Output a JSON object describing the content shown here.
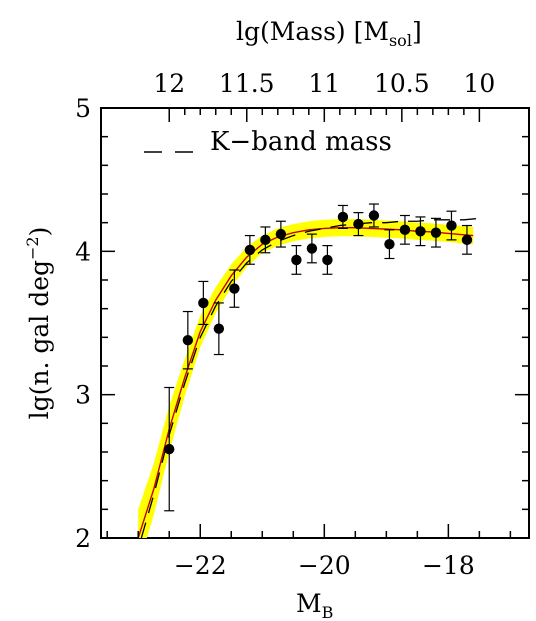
{
  "chart_data": {
    "type": "scatter",
    "xlabel": "M",
    "xlabel_sub": "B",
    "ylabel": "lg(n. gal deg",
    "ylabel_sup": "−2",
    "ylabel_end": ")",
    "top_axis_label": "lg(Mass)  [M",
    "top_axis_label_sub": "sol",
    "top_axis_label_end": "]",
    "xlim": [
      -23.6,
      -16.7
    ],
    "ylim": [
      2,
      5
    ],
    "x_ticks": [
      -22,
      -20,
      -18
    ],
    "x_tick_labels": [
      "−22",
      "−20",
      "−18"
    ],
    "y_ticks": [
      2,
      3,
      4,
      5
    ],
    "y_tick_labels": [
      "2",
      "3",
      "4",
      "5"
    ],
    "top_ticks": [
      {
        "mag": -22.5,
        "label": "12"
      },
      {
        "mag": -21.25,
        "label": "11.5"
      },
      {
        "mag": -20.0,
        "label": "11"
      },
      {
        "mag": -18.75,
        "label": "10.5"
      },
      {
        "mag": -17.5,
        "label": "10"
      }
    ],
    "legend": {
      "label": "K−band mass",
      "line_style": "dashed",
      "placement": "top-left"
    },
    "series": [
      {
        "type": "scatter-errorbar",
        "color": "#000000",
        "points": [
          {
            "x": -22.5,
            "y": 2.62,
            "err": 0.43
          },
          {
            "x": -22.2,
            "y": 3.38,
            "err": 0.2
          },
          {
            "x": -21.95,
            "y": 3.64,
            "err": 0.15
          },
          {
            "x": -21.7,
            "y": 3.46,
            "err": 0.18
          },
          {
            "x": -21.45,
            "y": 3.74,
            "err": 0.13
          },
          {
            "x": -21.2,
            "y": 4.01,
            "err": 0.1
          },
          {
            "x": -20.95,
            "y": 4.08,
            "err": 0.09
          },
          {
            "x": -20.7,
            "y": 4.12,
            "err": 0.09
          },
          {
            "x": -20.45,
            "y": 3.94,
            "err": 0.1
          },
          {
            "x": -20.2,
            "y": 4.02,
            "err": 0.1
          },
          {
            "x": -19.95,
            "y": 3.94,
            "err": 0.1
          },
          {
            "x": -19.7,
            "y": 4.24,
            "err": 0.08
          },
          {
            "x": -19.45,
            "y": 4.19,
            "err": 0.08
          },
          {
            "x": -19.2,
            "y": 4.25,
            "err": 0.08
          },
          {
            "x": -18.95,
            "y": 4.05,
            "err": 0.1
          },
          {
            "x": -18.7,
            "y": 4.15,
            "err": 0.1
          },
          {
            "x": -18.45,
            "y": 4.14,
            "err": 0.1
          },
          {
            "x": -18.2,
            "y": 4.13,
            "err": 0.1
          },
          {
            "x": -17.95,
            "y": 4.18,
            "err": 0.1
          },
          {
            "x": -17.7,
            "y": 4.08,
            "err": 0.1
          }
        ]
      },
      {
        "type": "line",
        "style": "solid",
        "color": "#c80000",
        "x": [
          -23.0,
          -22.75,
          -22.5,
          -22.25,
          -22.0,
          -21.75,
          -21.5,
          -21.25,
          -21.0,
          -20.75,
          -20.5,
          -20.25,
          -20.0,
          -19.75,
          -19.5,
          -19.25,
          -19.0,
          -18.75,
          -18.5,
          -18.25,
          -18.0,
          -17.75,
          -17.6
        ],
        "y": [
          2.0,
          2.34,
          2.76,
          3.12,
          3.44,
          3.66,
          3.83,
          3.96,
          4.05,
          4.1,
          4.13,
          4.15,
          4.16,
          4.165,
          4.165,
          4.16,
          4.155,
          4.15,
          4.14,
          4.135,
          4.125,
          4.115,
          4.11
        ]
      },
      {
        "type": "band",
        "color": "#ffff00",
        "x": [
          -23.0,
          -22.75,
          -22.5,
          -22.25,
          -22.0,
          -21.75,
          -21.5,
          -21.25,
          -21.0,
          -20.75,
          -20.5,
          -20.25,
          -20.0,
          -19.75,
          -19.5,
          -19.25,
          -19.0,
          -18.75,
          -18.5,
          -18.25,
          -18.0,
          -17.75,
          -17.6
        ],
        "halfwidth": [
          0.2,
          0.18,
          0.16,
          0.13,
          0.11,
          0.09,
          0.08,
          0.07,
          0.06,
          0.06,
          0.06,
          0.06,
          0.06,
          0.06,
          0.06,
          0.06,
          0.06,
          0.06,
          0.06,
          0.06,
          0.06,
          0.06,
          0.06
        ]
      },
      {
        "type": "line",
        "style": "dashed",
        "color": "#000000",
        "name": "K−band mass",
        "x": [
          -22.95,
          -22.75,
          -22.5,
          -22.25,
          -22.0,
          -21.75,
          -21.5,
          -21.25,
          -21.0,
          -20.75,
          -20.5,
          -20.25,
          -20.0,
          -19.75,
          -19.5,
          -19.25,
          -19.0,
          -18.75,
          -18.5,
          -18.25,
          -18.0,
          -17.75,
          -17.5
        ],
        "y": [
          2.0,
          2.3,
          2.72,
          3.08,
          3.4,
          3.62,
          3.79,
          3.92,
          4.01,
          4.07,
          4.11,
          4.14,
          4.16,
          4.18,
          4.19,
          4.2,
          4.2,
          4.21,
          4.21,
          4.22,
          4.22,
          4.22,
          4.23
        ]
      }
    ]
  }
}
